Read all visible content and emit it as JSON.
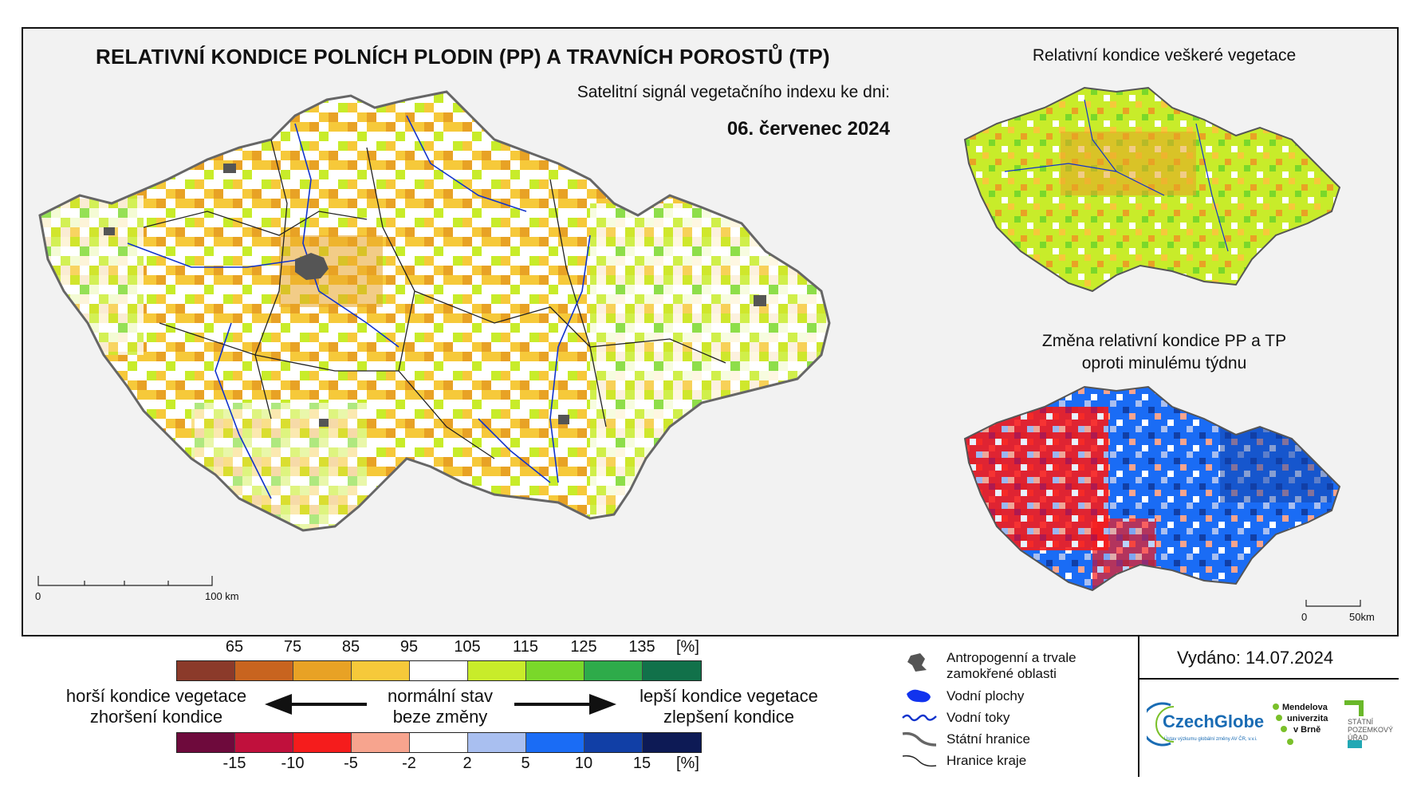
{
  "header": {
    "title": "RELATIVNÍ KONDICE POLNÍCH PLODIN (PP) A TRAVNÍCH POROSTŮ (TP)",
    "subtitle": "Satelitní signál vegetačního indexu ke dni:",
    "date": "06. červenec 2024"
  },
  "side_maps": {
    "top_title": "Relativní kondice veškeré vegetace",
    "bottom_title_line1": "Změna relativní kondice PP a TP",
    "bottom_title_line2": "oproti minulému týdnu"
  },
  "scalebars": {
    "main": {
      "start": "0",
      "end": "100 km"
    },
    "small": {
      "start": "0",
      "end": "50km"
    }
  },
  "legend": {
    "top_scale": {
      "ticks": [
        "65",
        "75",
        "85",
        "95",
        "105",
        "115",
        "125",
        "135"
      ],
      "unit": "[%]",
      "colors": [
        "#8b3a2a",
        "#c8641f",
        "#e8a225",
        "#f6c93a",
        "#ffffff",
        "#c8ec2a",
        "#7ad82a",
        "#2eab4a",
        "#11714a"
      ]
    },
    "bottom_scale": {
      "ticks": [
        "-15",
        "-10",
        "-5",
        "-2",
        "2",
        "5",
        "10",
        "15"
      ],
      "unit": "[%]",
      "colors": [
        "#6e0a3c",
        "#c0103c",
        "#f51c1c",
        "#f7a48e",
        "#ffffff",
        "#a9bff0",
        "#1a6cf5",
        "#113fa6",
        "#0d1a55"
      ]
    },
    "left_line1": "horší kondice vegetace",
    "left_line2": "zhoršení kondice",
    "center_line1": "normální stav",
    "center_line2": "beze změny",
    "right_line1": "lepší kondice vegetace",
    "right_line2": "zlepšení kondice"
  },
  "map_legend": {
    "anthro_line1": "Antropogenní a trvale",
    "anthro_line2": "zamokřené oblasti",
    "water_bodies": "Vodní plochy",
    "water_flows": "Vodní toky",
    "state_border": "Státní hranice",
    "region_border": "Hranice kraje"
  },
  "issued": "Vydáno: 14.07.2024",
  "logos": {
    "czechglobe": "CzechGlobe",
    "czechglobe_sub": "Ústav výzkumu globální změny AV ČR, v.v.i.",
    "mendel_line1": "Mendelova",
    "mendel_line2": "univerzita",
    "mendel_line3": "v Brně",
    "spu_line1": "STÁTNÍ",
    "spu_line2": "POZEMKOVÝ",
    "spu_line3": "ÚŘAD"
  }
}
